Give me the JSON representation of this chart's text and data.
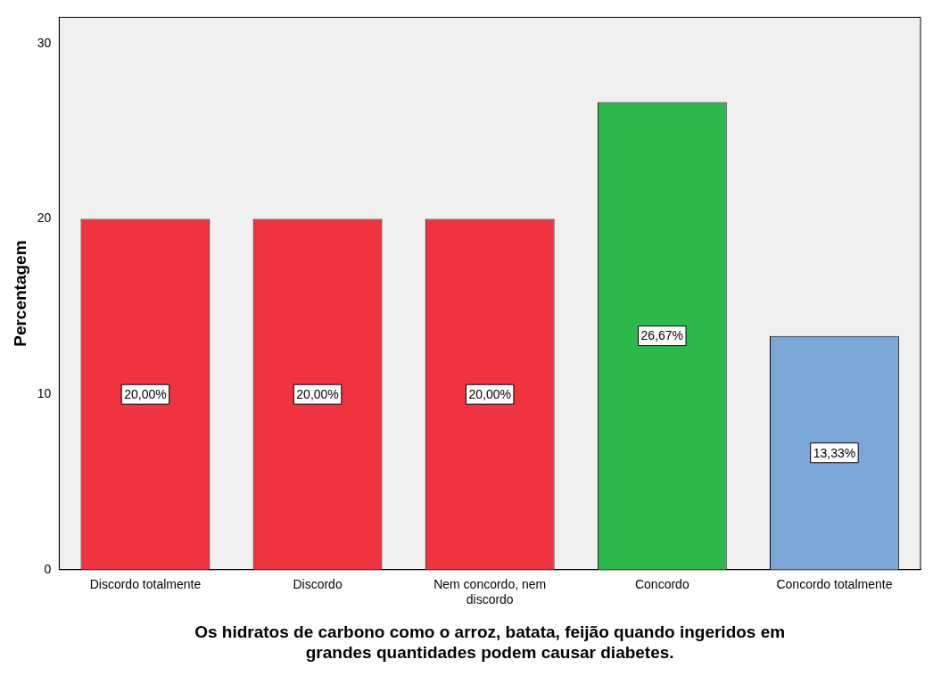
{
  "chart_data": {
    "type": "bar",
    "xlabel": "Os hidratos de carbono como o arroz, batata, feijão quando ingeridos em grandes quantidades podem causar diabetes.",
    "ylabel": "Percentagem",
    "categories": [
      "Discordo totalmente",
      "Discordo",
      "Nem concordo, nem discordo",
      "Concordo",
      "Concordo totalmente"
    ],
    "values": [
      20,
      20,
      20,
      26.67,
      13.33
    ],
    "colors": [
      "#ef3340",
      "#ef3340",
      "#ef3340",
      "#2eb84b",
      "#7ba7d6"
    ],
    "value_labels": [
      "20,00%",
      "20,00%",
      "20,00%",
      "26,67%",
      "13,33%"
    ],
    "ylim": [
      0,
      31.5
    ],
    "yticks": [
      0,
      10,
      20,
      30
    ],
    "grid": false,
    "legend": false
  }
}
